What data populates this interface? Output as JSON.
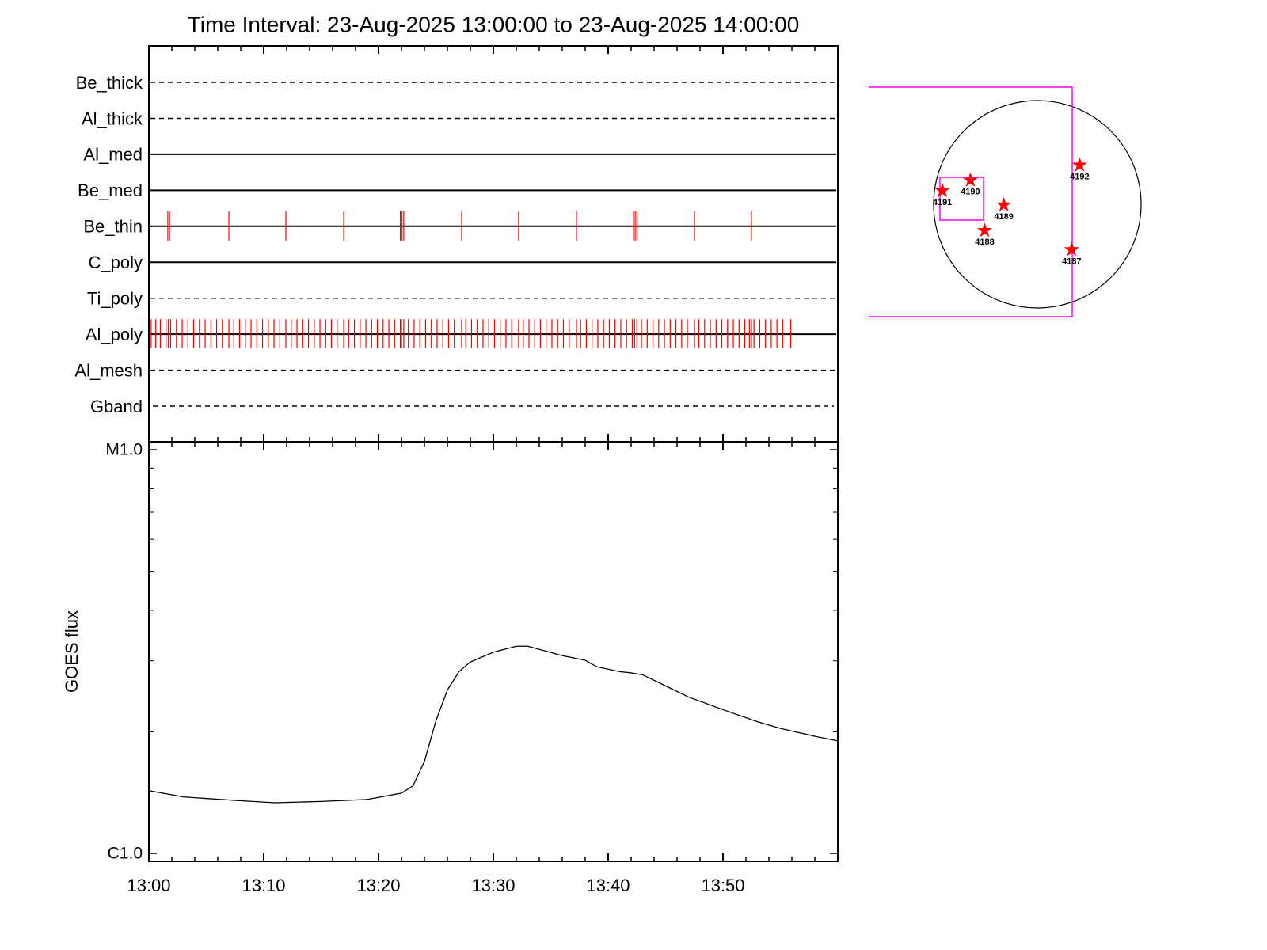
{
  "chart_data": [
    {
      "type": "timeline",
      "title": "Time Interval: 23-Aug-2025 13:00:00 to 23-Aug-2025 14:00:00",
      "color": "#ff0000",
      "rows": [
        {
          "name": "Be_thick",
          "dashed": true
        },
        {
          "name": "Al_thick",
          "dashed": true
        },
        {
          "name": "Al_med",
          "dashed": false
        },
        {
          "name": "Be_med",
          "dashed": false
        },
        {
          "name": "Be_thin",
          "dashed": false,
          "events": [
            1.65,
            1.8,
            6.97,
            11.93,
            16.97,
            21.9,
            22.05,
            22.2,
            27.24,
            32.2,
            37.24,
            42.2,
            42.35,
            42.5,
            47.52,
            52.48
          ]
        },
        {
          "name": "C_poly",
          "dashed": false
        },
        {
          "name": "Ti_poly",
          "dashed": true
        },
        {
          "name": "Al_poly",
          "dashed": false,
          "events": [
            0.2,
            0.6,
            1.0,
            1.5,
            1.7,
            1.9,
            2.4,
            2.9,
            3.4,
            3.9,
            4.4,
            4.9,
            5.4,
            5.9,
            6.4,
            6.97,
            7.4,
            7.9,
            8.4,
            8.9,
            9.4,
            9.9,
            10.4,
            10.9,
            11.4,
            11.93,
            12.4,
            12.9,
            13.4,
            13.9,
            14.4,
            14.9,
            15.4,
            15.9,
            16.4,
            16.97,
            17.4,
            17.9,
            18.4,
            18.9,
            19.4,
            19.9,
            20.4,
            20.9,
            21.4,
            21.9,
            22.0,
            22.2,
            22.6,
            23.1,
            23.6,
            24.1,
            24.6,
            25.1,
            25.6,
            26.1,
            26.6,
            27.24,
            27.6,
            28.1,
            28.6,
            29.1,
            29.6,
            30.1,
            30.6,
            31.1,
            31.6,
            32.2,
            32.6,
            33.1,
            33.6,
            34.1,
            34.6,
            35.1,
            35.6,
            36.1,
            36.6,
            37.24,
            37.6,
            38.1,
            38.6,
            39.1,
            39.6,
            40.1,
            40.6,
            41.1,
            41.6,
            42.1,
            42.3,
            42.5,
            42.9,
            43.4,
            43.9,
            44.4,
            44.9,
            45.4,
            45.9,
            46.4,
            46.9,
            47.52,
            47.9,
            48.4,
            48.9,
            49.4,
            49.9,
            50.4,
            50.9,
            51.4,
            51.9,
            52.3,
            52.48,
            52.7,
            53.2,
            53.7,
            54.2,
            54.7,
            55.2,
            55.9
          ]
        },
        {
          "name": "Al_mesh",
          "dashed": true
        },
        {
          "name": "Gband",
          "dashed": true
        }
      ]
    },
    {
      "type": "line",
      "ylabel": "GOES flux",
      "log_y": true,
      "color": "#000000",
      "x": [
        0,
        3,
        8,
        11,
        15,
        19,
        22,
        23,
        24,
        25,
        26,
        27,
        28,
        30,
        32,
        33,
        36,
        38,
        39,
        41,
        42,
        43,
        45,
        47,
        50,
        53,
        55,
        58,
        60
      ],
      "values": [
        1.43e-06,
        1.38e-06,
        1.35e-06,
        1.335e-06,
        1.345e-06,
        1.36e-06,
        1.41e-06,
        1.47e-06,
        1.69e-06,
        2.13e-06,
        2.54e-06,
        2.82e-06,
        2.98e-06,
        3.15e-06,
        3.26e-06,
        3.26e-06,
        3.09e-06,
        3.01e-06,
        2.9e-06,
        2.82e-06,
        2.8e-06,
        2.77e-06,
        2.6e-06,
        2.44e-06,
        2.27e-06,
        2.12e-06,
        2.04e-06,
        1.95e-06,
        1.9e-06
      ],
      "xlim": [
        0,
        60
      ],
      "xticks": [
        {
          "value": 0,
          "label": "13:00"
        },
        {
          "value": 10,
          "label": "13:10"
        },
        {
          "value": 20,
          "label": "13:20"
        },
        {
          "value": 30,
          "label": "13:30"
        },
        {
          "value": 40,
          "label": "13:40"
        },
        {
          "value": 50,
          "label": "13:50"
        }
      ],
      "xminorticks": [
        2,
        4,
        6,
        8,
        12,
        14,
        16,
        18,
        22,
        24,
        26,
        28,
        32,
        34,
        36,
        38,
        42,
        44,
        46,
        48,
        52,
        54,
        56,
        58
      ],
      "ylim": [
        1e-06,
        1e-05
      ],
      "yticks": [
        {
          "value": 1e-05,
          "label": "M1.0"
        },
        {
          "value": 1e-06,
          "label": "C1.0"
        }
      ],
      "yminorticks": [
        2e-06,
        3e-06,
        4e-06,
        5e-06,
        6e-06,
        7e-06,
        8e-06,
        9e-06
      ]
    },
    {
      "type": "scatter",
      "color": "#ff0000",
      "xlim": [
        -1000,
        1000
      ],
      "ylim": [
        -1000,
        1000
      ],
      "points": [
        {
          "label": "4192",
          "x": 387,
          "y": 358
        },
        {
          "label": "4191",
          "x": -869,
          "y": 124
        },
        {
          "label": "4190",
          "x": -613,
          "y": 219
        },
        {
          "label": "4189",
          "x": -307,
          "y": -7
        },
        {
          "label": "4188",
          "x": -482,
          "y": -241
        },
        {
          "label": "4187",
          "x": 314,
          "y": -416
        }
      ]
    }
  ]
}
